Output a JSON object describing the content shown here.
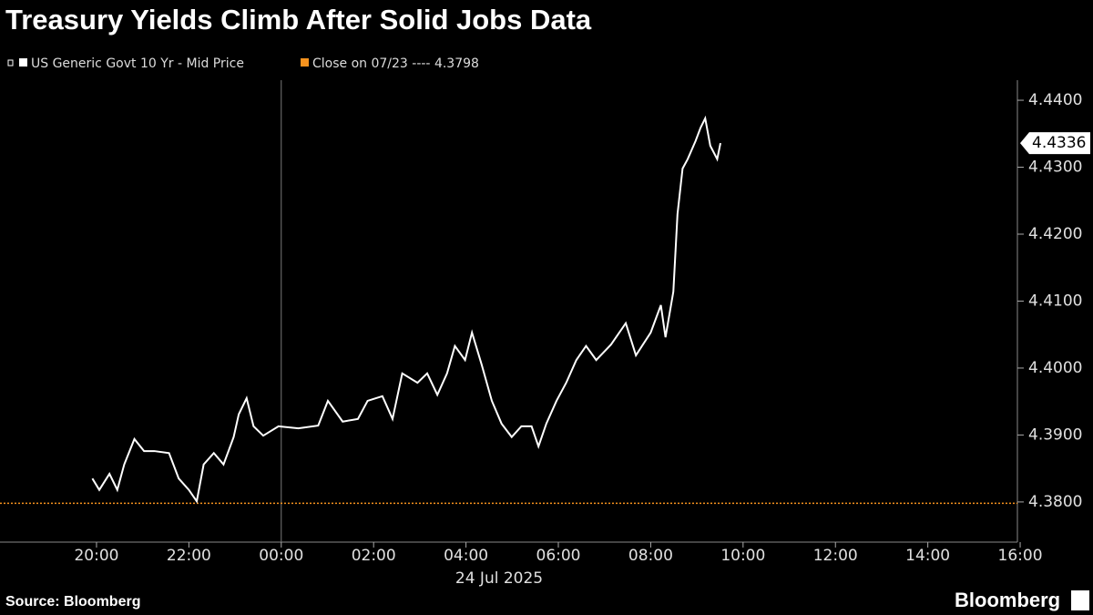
{
  "chart_data": {
    "type": "line",
    "title": "Treasury Yields Climb After Solid Jobs Data",
    "source": "Source: Bloomberg",
    "brand": "Bloomberg",
    "x_date_label": "24 Jul 2025",
    "x": [
      -4.09,
      -3.94,
      -3.72,
      -3.55,
      -3.4,
      -3.18,
      -2.97,
      -2.75,
      -2.43,
      -2.22,
      -2.0,
      -1.83,
      -1.68,
      -1.46,
      -1.25,
      -1.03,
      -0.92,
      -0.75,
      -0.6,
      -0.39,
      -0.06,
      0.37,
      0.8,
      1.01,
      1.33,
      1.66,
      1.87,
      2.19,
      2.41,
      2.62,
      2.95,
      3.16,
      3.38,
      3.59,
      3.76,
      3.98,
      4.13,
      4.34,
      4.56,
      4.77,
      4.99,
      5.2,
      5.42,
      5.57,
      5.74,
      5.96,
      6.17,
      6.39,
      6.6,
      6.82,
      7.14,
      7.46,
      7.68,
      8.0,
      8.22,
      8.32,
      8.49,
      8.58,
      8.69,
      8.8,
      8.97,
      9.08,
      9.18,
      9.29,
      9.44,
      9.51
    ],
    "series": [
      {
        "name": "US Generic Govt 10 Yr - Mid Price",
        "color": "#ffffff",
        "values": [
          4.3835,
          4.3818,
          4.3842,
          4.3818,
          4.3856,
          4.3894,
          4.3876,
          4.3876,
          4.3873,
          4.3835,
          4.3818,
          4.3801,
          4.3856,
          4.3873,
          4.3856,
          4.3897,
          4.3931,
          4.3955,
          4.3913,
          4.3899,
          4.3913,
          4.391,
          4.3914,
          4.3951,
          4.392,
          4.3924,
          4.3951,
          4.3958,
          4.3924,
          4.3992,
          4.3978,
          4.3992,
          4.396,
          4.3992,
          4.4033,
          4.4012,
          4.4053,
          4.4005,
          4.3951,
          4.3917,
          4.3897,
          4.3913,
          4.3913,
          4.3883,
          4.3917,
          4.3951,
          4.3978,
          4.4012,
          4.4033,
          4.4012,
          4.4035,
          4.4067,
          4.4019,
          4.4053,
          4.4094,
          4.4046,
          4.4114,
          4.423,
          4.4298,
          4.4312,
          4.4339,
          4.4359,
          4.4373,
          4.4332,
          4.4312,
          4.4336
        ]
      }
    ],
    "reference": {
      "label": "Close on 07/23 ----",
      "value": 4.3798,
      "color": "#f7931e"
    },
    "xlim": [
      -6.09,
      15.94
    ],
    "xticks": [
      {
        "value": -4,
        "label": "20:00"
      },
      {
        "value": -2,
        "label": "22:00"
      },
      {
        "value": 0,
        "label": "00:00"
      },
      {
        "value": 2,
        "label": "02:00"
      },
      {
        "value": 4,
        "label": "04:00"
      },
      {
        "value": 6,
        "label": "06:00"
      },
      {
        "value": 8,
        "label": "08:00"
      },
      {
        "value": 10,
        "label": "10:00"
      },
      {
        "value": 12,
        "label": "12:00"
      },
      {
        "value": 14,
        "label": "14:00"
      },
      {
        "value": 16,
        "label": "16:00"
      }
    ],
    "ylim": [
      4.374,
      4.443
    ],
    "yticks": [
      {
        "value": 4.38,
        "label": "4.3800"
      },
      {
        "value": 4.39,
        "label": "4.3900"
      },
      {
        "value": 4.4,
        "label": "4.4000"
      },
      {
        "value": 4.41,
        "label": "4.4100"
      },
      {
        "value": 4.42,
        "label": "4.4200"
      },
      {
        "value": 4.43,
        "label": "4.4300"
      },
      {
        "value": 4.44,
        "label": "4.4400"
      }
    ],
    "y_axis_side": "right"
  }
}
